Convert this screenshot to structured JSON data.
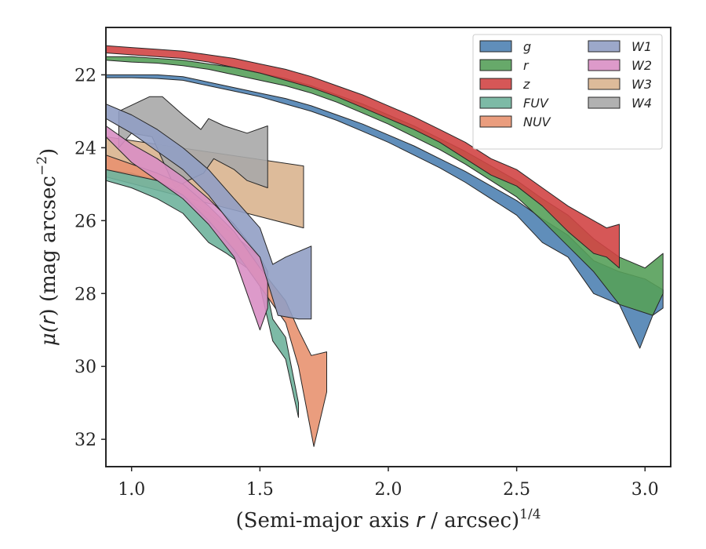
{
  "chart_data": {
    "type": "area",
    "xlabel_main": "(Semi-major axis ",
    "xlabel_var": "r",
    "xlabel_tail": " / arcsec)",
    "xlabel_exp": "1/4",
    "ylabel_main": "μ(",
    "ylabel_var": "r",
    "ylabel_tail": ") (mag arcsec",
    "ylabel_exp": "−2",
    "ylabel_close": ")",
    "xlim": [
      0.9,
      3.1
    ],
    "ylim": [
      20.7,
      32.75
    ],
    "y_inverted": true,
    "x_ticks": [
      1.0,
      1.5,
      2.0,
      2.5,
      3.0
    ],
    "x_tick_labels": [
      "1.0",
      "1.5",
      "2.0",
      "2.5",
      "3.0"
    ],
    "y_ticks": [
      22,
      24,
      26,
      28,
      30,
      32
    ],
    "y_tick_labels": [
      "22",
      "24",
      "26",
      "28",
      "30",
      "32"
    ],
    "legend_position": "top-right",
    "legend_columns": 2,
    "series": [
      {
        "name": "W3",
        "color": "#d9b48f",
        "upper": [
          [
            0.9,
            23.7
          ],
          [
            1.67,
            24.5
          ]
        ],
        "lower": [
          [
            0.9,
            24.8
          ],
          [
            1.67,
            26.2
          ]
        ]
      },
      {
        "name": "W4",
        "color": "#a8a8a8",
        "upper": [
          [
            0.95,
            23.0
          ],
          [
            1.07,
            22.6
          ],
          [
            1.12,
            22.6
          ],
          [
            1.2,
            23.1
          ],
          [
            1.27,
            23.5
          ],
          [
            1.3,
            23.2
          ],
          [
            1.36,
            23.4
          ],
          [
            1.45,
            23.6
          ],
          [
            1.53,
            23.4
          ]
        ],
        "lower": [
          [
            0.95,
            24.0
          ],
          [
            1.0,
            23.6
          ],
          [
            1.08,
            23.7
          ],
          [
            1.15,
            24.8
          ],
          [
            1.17,
            25.1
          ],
          [
            1.22,
            24.9
          ],
          [
            1.28,
            24.7
          ],
          [
            1.32,
            24.3
          ],
          [
            1.4,
            24.6
          ],
          [
            1.45,
            24.9
          ],
          [
            1.53,
            25.1
          ]
        ]
      },
      {
        "name": "FUV",
        "color": "#6fb39c",
        "upper": [
          [
            0.9,
            24.6
          ],
          [
            1.0,
            24.7
          ],
          [
            1.1,
            24.9
          ],
          [
            1.2,
            25.3
          ],
          [
            1.3,
            25.8
          ],
          [
            1.4,
            26.4
          ],
          [
            1.45,
            26.7
          ],
          [
            1.5,
            27.0
          ],
          [
            1.55,
            28.7
          ],
          [
            1.6,
            29.2
          ],
          [
            1.65,
            31.0
          ]
        ],
        "lower": [
          [
            0.9,
            24.9
          ],
          [
            1.0,
            25.1
          ],
          [
            1.1,
            25.4
          ],
          [
            1.2,
            25.8
          ],
          [
            1.3,
            26.6
          ],
          [
            1.37,
            26.9
          ],
          [
            1.45,
            27.3
          ],
          [
            1.5,
            27.8
          ],
          [
            1.55,
            29.3
          ],
          [
            1.6,
            29.8
          ],
          [
            1.65,
            31.4
          ]
        ]
      },
      {
        "name": "NUV",
        "color": "#e89270",
        "upper": [
          [
            0.9,
            24.2
          ],
          [
            1.1,
            24.7
          ],
          [
            1.2,
            25.0
          ],
          [
            1.3,
            25.6
          ],
          [
            1.4,
            26.3
          ],
          [
            1.5,
            27.3
          ],
          [
            1.6,
            28.2
          ],
          [
            1.65,
            29.0
          ],
          [
            1.7,
            29.7
          ],
          [
            1.76,
            29.6
          ]
        ],
        "lower": [
          [
            0.9,
            24.6
          ],
          [
            1.1,
            24.9
          ],
          [
            1.2,
            25.3
          ],
          [
            1.3,
            26.0
          ],
          [
            1.4,
            26.8
          ],
          [
            1.5,
            27.8
          ],
          [
            1.6,
            28.8
          ],
          [
            1.65,
            30.0
          ],
          [
            1.71,
            32.2
          ],
          [
            1.76,
            30.7
          ]
        ]
      },
      {
        "name": "W2",
        "color": "#d98fc4",
        "upper": [
          [
            0.9,
            23.4
          ],
          [
            1.0,
            23.9
          ],
          [
            1.1,
            24.3
          ],
          [
            1.2,
            24.8
          ],
          [
            1.3,
            25.4
          ],
          [
            1.4,
            26.1
          ],
          [
            1.5,
            27.0
          ],
          [
            1.53,
            27.4
          ]
        ],
        "lower": [
          [
            0.9,
            23.7
          ],
          [
            1.0,
            24.4
          ],
          [
            1.1,
            24.9
          ],
          [
            1.2,
            25.4
          ],
          [
            1.3,
            26.1
          ],
          [
            1.4,
            27.0
          ],
          [
            1.45,
            28.0
          ],
          [
            1.5,
            29.0
          ],
          [
            1.53,
            28.4
          ]
        ]
      },
      {
        "name": "W1",
        "color": "#919fc4",
        "upper": [
          [
            0.9,
            22.8
          ],
          [
            1.0,
            23.1
          ],
          [
            1.1,
            23.5
          ],
          [
            1.2,
            24.0
          ],
          [
            1.3,
            24.6
          ],
          [
            1.4,
            25.4
          ],
          [
            1.5,
            26.2
          ],
          [
            1.55,
            27.2
          ],
          [
            1.6,
            27.0
          ],
          [
            1.7,
            26.7
          ]
        ],
        "lower": [
          [
            0.9,
            23.2
          ],
          [
            1.0,
            23.6
          ],
          [
            1.1,
            24.1
          ],
          [
            1.2,
            24.6
          ],
          [
            1.3,
            25.3
          ],
          [
            1.4,
            26.2
          ],
          [
            1.5,
            27.0
          ],
          [
            1.57,
            28.6
          ],
          [
            1.65,
            28.7
          ],
          [
            1.7,
            28.7
          ]
        ]
      },
      {
        "name": "g",
        "color": "#4f82b3",
        "upper": [
          [
            0.9,
            22.0
          ],
          [
            1.0,
            22.0
          ],
          [
            1.1,
            22.0
          ],
          [
            1.2,
            22.05
          ],
          [
            1.3,
            22.2
          ],
          [
            1.4,
            22.35
          ],
          [
            1.5,
            22.5
          ],
          [
            1.6,
            22.65
          ],
          [
            1.7,
            22.85
          ],
          [
            1.8,
            23.1
          ],
          [
            1.9,
            23.35
          ],
          [
            2.0,
            23.65
          ],
          [
            2.1,
            23.95
          ],
          [
            2.2,
            24.3
          ],
          [
            2.3,
            24.65
          ],
          [
            2.4,
            25.05
          ],
          [
            2.5,
            25.45
          ],
          [
            2.6,
            25.95
          ],
          [
            2.7,
            26.4
          ],
          [
            2.8,
            27.1
          ],
          [
            2.9,
            27.4
          ],
          [
            3.0,
            27.6
          ],
          [
            3.07,
            27.9
          ]
        ],
        "lower": [
          [
            3.07,
            28.4
          ],
          [
            3.03,
            28.6
          ],
          [
            2.98,
            29.5
          ],
          [
            2.9,
            28.3
          ],
          [
            2.8,
            28.0
          ],
          [
            2.7,
            27.0
          ],
          [
            2.6,
            26.6
          ],
          [
            2.5,
            25.85
          ],
          [
            2.4,
            25.4
          ],
          [
            2.3,
            24.95
          ],
          [
            2.2,
            24.55
          ],
          [
            2.1,
            24.2
          ],
          [
            2.0,
            23.85
          ],
          [
            1.9,
            23.55
          ],
          [
            1.8,
            23.25
          ],
          [
            1.7,
            23.0
          ],
          [
            1.6,
            22.8
          ],
          [
            1.5,
            22.6
          ],
          [
            1.4,
            22.45
          ],
          [
            1.3,
            22.3
          ],
          [
            1.2,
            22.15
          ],
          [
            1.1,
            22.1
          ],
          [
            1.0,
            22.08
          ],
          [
            0.9,
            22.08
          ]
        ]
      },
      {
        "name": "r",
        "color": "#56a05a",
        "upper": [
          [
            0.9,
            21.5
          ],
          [
            1.0,
            21.5
          ],
          [
            1.1,
            21.55
          ],
          [
            1.2,
            21.6
          ],
          [
            1.3,
            21.7
          ],
          [
            1.4,
            21.8
          ],
          [
            1.5,
            21.95
          ],
          [
            1.6,
            22.1
          ],
          [
            1.7,
            22.3
          ],
          [
            1.8,
            22.55
          ],
          [
            1.9,
            22.8
          ],
          [
            2.0,
            23.1
          ],
          [
            2.1,
            23.4
          ],
          [
            2.2,
            23.75
          ],
          [
            2.3,
            24.1
          ],
          [
            2.4,
            24.5
          ],
          [
            2.5,
            24.9
          ],
          [
            2.6,
            25.4
          ],
          [
            2.7,
            25.85
          ],
          [
            2.8,
            26.5
          ],
          [
            2.9,
            27.0
          ],
          [
            3.0,
            27.3
          ],
          [
            3.07,
            26.9
          ]
        ],
        "lower": [
          [
            3.07,
            28.0
          ],
          [
            3.03,
            28.6
          ],
          [
            2.9,
            28.3
          ],
          [
            2.8,
            27.4
          ],
          [
            2.7,
            26.7
          ],
          [
            2.6,
            26.0
          ],
          [
            2.5,
            25.35
          ],
          [
            2.4,
            24.9
          ],
          [
            2.3,
            24.45
          ],
          [
            2.2,
            24.05
          ],
          [
            2.1,
            23.7
          ],
          [
            2.0,
            23.35
          ],
          [
            1.9,
            23.05
          ],
          [
            1.8,
            22.75
          ],
          [
            1.7,
            22.5
          ],
          [
            1.6,
            22.3
          ],
          [
            1.5,
            22.15
          ],
          [
            1.4,
            22.0
          ],
          [
            1.3,
            21.85
          ],
          [
            1.2,
            21.75
          ],
          [
            1.1,
            21.68
          ],
          [
            1.0,
            21.65
          ],
          [
            0.9,
            21.6
          ]
        ]
      },
      {
        "name": "z",
        "color": "#d14545",
        "upper": [
          [
            0.9,
            21.2
          ],
          [
            1.0,
            21.25
          ],
          [
            1.1,
            21.3
          ],
          [
            1.2,
            21.35
          ],
          [
            1.3,
            21.45
          ],
          [
            1.4,
            21.55
          ],
          [
            1.5,
            21.7
          ],
          [
            1.6,
            21.85
          ],
          [
            1.7,
            22.05
          ],
          [
            1.8,
            22.3
          ],
          [
            1.9,
            22.55
          ],
          [
            2.0,
            22.85
          ],
          [
            2.1,
            23.15
          ],
          [
            2.2,
            23.5
          ],
          [
            2.3,
            23.85
          ],
          [
            2.4,
            24.3
          ],
          [
            2.5,
            24.6
          ],
          [
            2.6,
            25.1
          ],
          [
            2.7,
            25.6
          ],
          [
            2.8,
            26.0
          ],
          [
            2.85,
            26.2
          ],
          [
            2.9,
            26.1
          ]
        ],
        "lower": [
          [
            2.9,
            27.3
          ],
          [
            2.85,
            27.0
          ],
          [
            2.8,
            26.9
          ],
          [
            2.7,
            26.3
          ],
          [
            2.6,
            25.6
          ],
          [
            2.5,
            25.05
          ],
          [
            2.4,
            24.75
          ],
          [
            2.3,
            24.3
          ],
          [
            2.2,
            23.85
          ],
          [
            2.1,
            23.5
          ],
          [
            2.0,
            23.2
          ],
          [
            1.9,
            22.9
          ],
          [
            1.8,
            22.6
          ],
          [
            1.7,
            22.35
          ],
          [
            1.6,
            22.15
          ],
          [
            1.5,
            21.95
          ],
          [
            1.4,
            21.8
          ],
          [
            1.3,
            21.65
          ],
          [
            1.2,
            21.55
          ],
          [
            1.1,
            21.5
          ],
          [
            1.0,
            21.45
          ],
          [
            0.9,
            21.4
          ]
        ]
      }
    ],
    "legend": [
      [
        "g",
        "r",
        "z",
        "FUV",
        "NUV"
      ],
      [
        "W1",
        "W2",
        "W3",
        "W4"
      ]
    ]
  }
}
